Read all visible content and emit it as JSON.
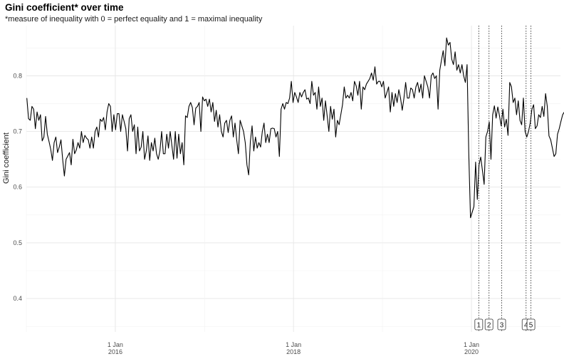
{
  "chart_data": {
    "type": "line",
    "title": "Gini coefficient* over time",
    "subtitle": "*measure of inequality with 0 = perfect equality and 1 = maximal inequality",
    "xlabel": "",
    "ylabel": "Gini coefficient",
    "xlim": [
      "2015-01-01",
      "2020-12-31"
    ],
    "ylim": [
      0.34,
      0.89
    ],
    "y_ticks": [
      0.4,
      0.5,
      0.6,
      0.7,
      0.8
    ],
    "y_tick_labels": [
      "0.4",
      "0.5",
      "0.6",
      "0.7",
      "0.8"
    ],
    "x_ticks": [
      {
        "date": "2016-01-01",
        "label": "1 Jan\n2016"
      },
      {
        "date": "2018-01-01",
        "label": "1 Jan\n2018"
      },
      {
        "date": "2020-01-01",
        "label": "1 Jan\n2020"
      }
    ],
    "grid": true,
    "line_color": "#000000",
    "series": [
      {
        "start": "2015-01-03",
        "interval_days": 7,
        "values": [
          0.76,
          0.723,
          0.72,
          0.745,
          0.74,
          0.705,
          0.735,
          0.72,
          0.73,
          0.683,
          0.69,
          0.727,
          0.695,
          0.682,
          0.668,
          0.648,
          0.68,
          0.69,
          0.662,
          0.672,
          0.685,
          0.65,
          0.62,
          0.65,
          0.656,
          0.662,
          0.64,
          0.686,
          0.66,
          0.667,
          0.68,
          0.67,
          0.7,
          0.68,
          0.693,
          0.688,
          0.685,
          0.67,
          0.69,
          0.67,
          0.7,
          0.708,
          0.69,
          0.722,
          0.718,
          0.725,
          0.703,
          0.735,
          0.75,
          0.745,
          0.7,
          0.73,
          0.703,
          0.732,
          0.732,
          0.7,
          0.73,
          0.718,
          0.705,
          0.665,
          0.723,
          0.73,
          0.7,
          0.712,
          0.66,
          0.708,
          0.665,
          0.672,
          0.7,
          0.65,
          0.665,
          0.692,
          0.648,
          0.68,
          0.665,
          0.688,
          0.66,
          0.65,
          0.665,
          0.7,
          0.66,
          0.66,
          0.695,
          0.67,
          0.7,
          0.675,
          0.65,
          0.7,
          0.652,
          0.695,
          0.66,
          0.68,
          0.64,
          0.728,
          0.725,
          0.745,
          0.752,
          0.743,
          0.712,
          0.742,
          0.745,
          0.752,
          0.7,
          0.762,
          0.755,
          0.758,
          0.745,
          0.758,
          0.735,
          0.752,
          0.718,
          0.738,
          0.708,
          0.73,
          0.7,
          0.69,
          0.715,
          0.72,
          0.698,
          0.72,
          0.728,
          0.69,
          0.715,
          0.685,
          0.66,
          0.72,
          0.71,
          0.7,
          0.68,
          0.64,
          0.622,
          0.682,
          0.71,
          0.665,
          0.69,
          0.67,
          0.68,
          0.672,
          0.7,
          0.715,
          0.68,
          0.695,
          0.68,
          0.705,
          0.706,
          0.705,
          0.69,
          0.7,
          0.655,
          0.74,
          0.75,
          0.74,
          0.752,
          0.75,
          0.76,
          0.79,
          0.752,
          0.77,
          0.762,
          0.752,
          0.77,
          0.762,
          0.77,
          0.775,
          0.758,
          0.76,
          0.75,
          0.79,
          0.765,
          0.77,
          0.74,
          0.78,
          0.745,
          0.76,
          0.72,
          0.755,
          0.728,
          0.7,
          0.745,
          0.722,
          0.74,
          0.69,
          0.72,
          0.712,
          0.73,
          0.748,
          0.78,
          0.76,
          0.765,
          0.76,
          0.77,
          0.755,
          0.79,
          0.782,
          0.765,
          0.79,
          0.74,
          0.78,
          0.775,
          0.785,
          0.79,
          0.795,
          0.805,
          0.792,
          0.816,
          0.785,
          0.79,
          0.79,
          0.78,
          0.79,
          0.76,
          0.77,
          0.78,
          0.735,
          0.77,
          0.745,
          0.768,
          0.752,
          0.775,
          0.76,
          0.738,
          0.76,
          0.788,
          0.76,
          0.76,
          0.778,
          0.775,
          0.76,
          0.78,
          0.788,
          0.77,
          0.785,
          0.76,
          0.8,
          0.79,
          0.78,
          0.76,
          0.8,
          0.805,
          0.795,
          0.8,
          0.74,
          0.81,
          0.828,
          0.845,
          0.818,
          0.868,
          0.855,
          0.86,
          0.83,
          0.82,
          0.843,
          0.81,
          0.82,
          0.805,
          0.82,
          0.8,
          0.788,
          0.82,
          0.66,
          0.545,
          0.555,
          0.565,
          0.645,
          0.578,
          0.64,
          0.654,
          0.63,
          0.605,
          0.69,
          0.7,
          0.717,
          0.65,
          0.73,
          0.746,
          0.724,
          0.744,
          0.728,
          0.71,
          0.74,
          0.708,
          0.722,
          0.693,
          0.788,
          0.78,
          0.752,
          0.76,
          0.73,
          0.755,
          0.72,
          0.712,
          0.76,
          0.7,
          0.69,
          0.7,
          0.715,
          0.74,
          0.748,
          0.705,
          0.71,
          0.73,
          0.725,
          0.745,
          0.727,
          0.768,
          0.745,
          0.692,
          0.685,
          0.67,
          0.655,
          0.66,
          0.695,
          0.705,
          0.718,
          0.73,
          0.735,
          0.726,
          0.745,
          0.762
        ]
      }
    ],
    "annotations": [
      {
        "label": "1",
        "date": "2020-01-31",
        "style": "dotted-vline"
      },
      {
        "label": "2",
        "date": "2020-03-13",
        "style": "dotted-vline"
      },
      {
        "label": "3",
        "date": "2020-05-04",
        "style": "dotted-vline"
      },
      {
        "label": "4",
        "date": "2020-08-12",
        "style": "dotted-vline"
      },
      {
        "label": "5",
        "date": "2020-09-01",
        "style": "dotted-vline"
      }
    ]
  }
}
